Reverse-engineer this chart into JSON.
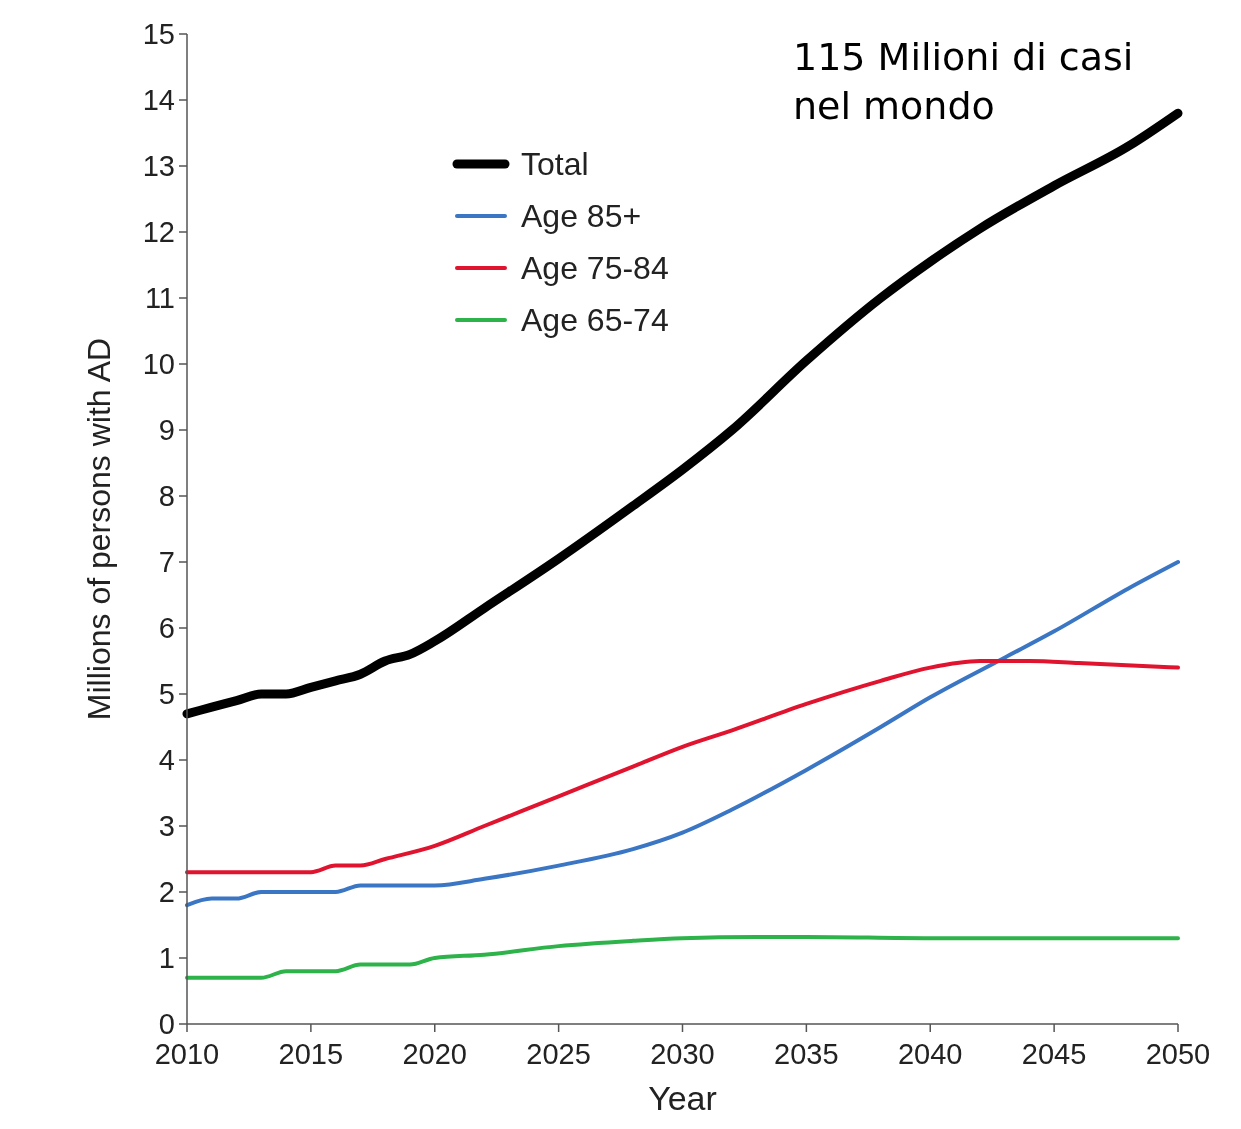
{
  "chart_data": {
    "type": "line",
    "xlabel": "Year",
    "ylabel": "Millions of persons with AD",
    "annotations": [
      "115 Milioni di casi nel mondo"
    ],
    "xlim": [
      2010,
      2050
    ],
    "xticks": [
      2010,
      2015,
      2020,
      2025,
      2030,
      2035,
      2040,
      2045,
      2050
    ],
    "ylim": [
      0,
      15
    ],
    "yticks": [
      0,
      1,
      2,
      3,
      4,
      5,
      6,
      7,
      8,
      9,
      10,
      11,
      12,
      13,
      14,
      15
    ],
    "grid": false,
    "legend": "top left",
    "marker": "none",
    "line_style": "solid",
    "series": [
      {
        "name": "Total",
        "color": "#000000",
        "x": [
          2010,
          2011,
          2012,
          2013,
          2014,
          2015,
          2016,
          2017,
          2018,
          2019,
          2020,
          2022,
          2025,
          2028,
          2030,
          2032,
          2035,
          2038,
          2040,
          2042,
          2045,
          2048,
          2050
        ],
        "values": [
          4.7,
          4.8,
          4.9,
          5.0,
          5.0,
          5.1,
          5.2,
          5.3,
          5.5,
          5.6,
          5.8,
          6.3,
          7.05,
          7.85,
          8.4,
          9.0,
          10.05,
          11.0,
          11.55,
          12.05,
          12.7,
          13.3,
          13.8
        ]
      },
      {
        "name": "Age 85+",
        "color": "#3a76c4",
        "x": [
          2010,
          2011,
          2012,
          2013,
          2015,
          2016,
          2017,
          2019,
          2020,
          2022,
          2025,
          2028,
          2030,
          2032,
          2035,
          2038,
          2040,
          2043,
          2045,
          2048,
          2050
        ],
        "values": [
          1.8,
          1.9,
          1.9,
          2.0,
          2.0,
          2.0,
          2.1,
          2.1,
          2.1,
          2.2,
          2.4,
          2.65,
          2.9,
          3.25,
          3.85,
          4.5,
          4.95,
          5.55,
          5.95,
          6.6,
          7.0
        ]
      },
      {
        "name": "Age 75-84",
        "color": "#e0142f",
        "x": [
          2010,
          2015,
          2016,
          2017,
          2018,
          2020,
          2022,
          2025,
          2028,
          2030,
          2032,
          2035,
          2038,
          2040,
          2042,
          2044,
          2046,
          2050
        ],
        "values": [
          2.3,
          2.3,
          2.4,
          2.4,
          2.5,
          2.7,
          3.0,
          3.45,
          3.9,
          4.2,
          4.45,
          4.85,
          5.2,
          5.4,
          5.5,
          5.5,
          5.47,
          5.4
        ]
      },
      {
        "name": "Age 65-74",
        "color": "#2db34a",
        "x": [
          2010,
          2013,
          2014,
          2016,
          2017,
          2019,
          2020,
          2022,
          2025,
          2028,
          2030,
          2033,
          2035,
          2040,
          2045,
          2050
        ],
        "values": [
          0.7,
          0.7,
          0.8,
          0.8,
          0.9,
          0.9,
          1.0,
          1.05,
          1.18,
          1.26,
          1.3,
          1.32,
          1.32,
          1.3,
          1.3,
          1.3
        ]
      }
    ]
  }
}
